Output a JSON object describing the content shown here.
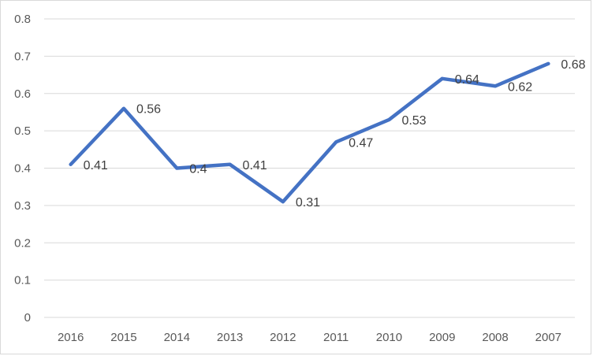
{
  "chart_data": {
    "type": "line",
    "title": "",
    "xlabel": "",
    "ylabel": "",
    "categories": [
      "2016",
      "2015",
      "2014",
      "2013",
      "2012",
      "2011",
      "2010",
      "2009",
      "2008",
      "2007"
    ],
    "series": [
      {
        "name": "Series 1",
        "values": [
          0.41,
          0.56,
          0.4,
          0.41,
          0.31,
          0.47,
          0.53,
          0.64,
          0.62,
          0.68
        ],
        "data_labels": [
          "0.41",
          "0.56",
          "0.4",
          "0.41",
          "0.31",
          "0.47",
          "0.53",
          "0.64",
          "0.62",
          "0.68"
        ],
        "color": "#4472c4"
      }
    ],
    "ylim": [
      0,
      0.8
    ],
    "yticks": [
      0,
      0.1,
      0.2,
      0.3,
      0.4,
      0.5,
      0.6,
      0.7,
      0.8
    ],
    "ytick_labels": [
      "0",
      "0.1",
      "0.2",
      "0.3",
      "0.4",
      "0.5",
      "0.6",
      "0.7",
      "0.8"
    ],
    "grid": true,
    "legend": "none"
  }
}
